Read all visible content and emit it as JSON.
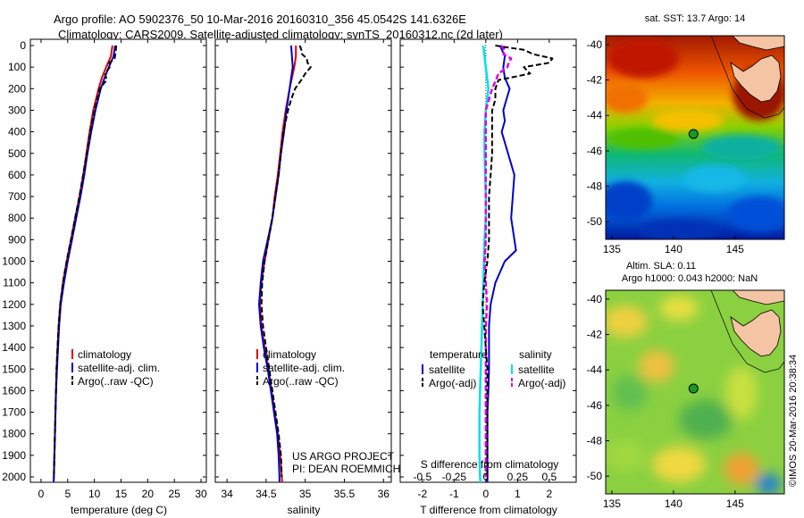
{
  "header": {
    "line1": "Argo profile: AO 5902376_50 10-Mar-2016 20160310_356 45.0542S 141.6326E",
    "line2": "Climatology: CARS2009. Satellite-adjusted climatology: synTS_20160312.nc (2d later)"
  },
  "colors": {
    "climatology": "#e00000",
    "satellite": "#0000d0",
    "argo": "#000000",
    "sat_salinity": "#00e0e8",
    "argo_salinity": "#e000e0"
  },
  "chart_data": [
    {
      "type": "line",
      "id": "temperature",
      "xlabel": "temperature (deg C)",
      "ylim": [
        2050,
        0
      ],
      "xlim": [
        -2,
        31
      ],
      "xticks": [
        "0",
        "5",
        "10",
        "15",
        "20",
        "25",
        "30"
      ],
      "yticks": [
        "0",
        "100",
        "200",
        "300",
        "400",
        "500",
        "600",
        "700",
        "800",
        "900",
        "1000",
        "1100",
        "1200",
        "1300",
        "1400",
        "1500",
        "1600",
        "1700",
        "1800",
        "1900",
        "2000"
      ],
      "legend": [
        "climatology",
        "satellite-adj. clim.",
        "Argo(..raw -QC)"
      ],
      "series": [
        {
          "name": "climatology",
          "depth": [
            0,
            50,
            100,
            150,
            200,
            300,
            400,
            500,
            600,
            700,
            800,
            900,
            1000,
            1100,
            1200,
            1300,
            1400,
            1500,
            1600,
            1700,
            1800,
            1900,
            2000,
            2050
          ],
          "values": [
            13.4,
            13.1,
            12.2,
            11.4,
            10.8,
            9.8,
            9.1,
            8.5,
            7.9,
            7.2,
            6.4,
            5.6,
            4.8,
            4.1,
            3.6,
            3.3,
            3.1,
            2.9,
            2.8,
            2.7,
            2.6,
            2.5,
            2.4,
            2.3
          ]
        },
        {
          "name": "satellite-adj. clim.",
          "depth": [
            0,
            50,
            100,
            150,
            200,
            300,
            400,
            500,
            600,
            700,
            800,
            900,
            1000,
            1100,
            1200,
            1300,
            1400,
            1500,
            1600,
            1700,
            1800,
            1900,
            2000,
            2050
          ],
          "values": [
            13.9,
            13.6,
            12.7,
            11.9,
            11.2,
            10.2,
            9.4,
            8.7,
            8.1,
            7.4,
            6.6,
            5.8,
            5.0,
            4.3,
            3.7,
            3.4,
            3.2,
            3.0,
            2.8,
            2.7,
            2.6,
            2.5,
            2.4,
            2.3
          ]
        },
        {
          "name": "Argo(..raw -QC)",
          "depth": [
            0,
            30,
            60,
            80,
            100,
            130,
            160,
            200,
            250,
            300,
            400,
            500,
            600,
            700,
            800,
            900,
            1000,
            1100,
            1200,
            1300,
            1400,
            1500,
            1600,
            1700,
            1800,
            1900,
            2000
          ],
          "values": [
            14.1,
            14.0,
            13.8,
            12.8,
            12.9,
            12.0,
            12.3,
            11.0,
            10.5,
            10.0,
            9.2,
            8.6,
            7.9,
            7.2,
            6.4,
            5.6,
            4.8,
            4.1,
            3.6,
            3.3,
            3.1,
            2.9,
            2.8,
            2.7,
            2.6,
            2.5,
            2.4
          ]
        }
      ]
    },
    {
      "type": "line",
      "id": "salinity",
      "xlabel": "salinity",
      "ylim": [
        2050,
        0
      ],
      "xlim": [
        33.85,
        36.1
      ],
      "xticks": [
        "34",
        "34.5",
        "35",
        "35.5",
        "36"
      ],
      "legend": [
        "climatology",
        "satellite-adj. clim.",
        "Argo(..raw -QC)"
      ],
      "annotation": [
        "US ARGO PROJECT",
        "PI: DEAN ROEMMICH"
      ],
      "series": [
        {
          "name": "climatology",
          "depth": [
            0,
            50,
            100,
            150,
            200,
            300,
            400,
            500,
            600,
            700,
            800,
            900,
            1000,
            1100,
            1200,
            1300,
            1400,
            1500,
            1600,
            1700,
            1800,
            1900,
            2000,
            2050
          ],
          "values": [
            34.88,
            34.88,
            34.86,
            34.83,
            34.8,
            34.75,
            34.71,
            34.68,
            34.65,
            34.61,
            34.58,
            34.53,
            34.48,
            34.44,
            34.42,
            34.44,
            34.48,
            34.53,
            34.57,
            34.61,
            34.65,
            34.68,
            34.7,
            34.71
          ]
        },
        {
          "name": "satellite-adj. clim.",
          "depth": [
            0,
            50,
            100,
            150,
            200,
            300,
            400,
            500,
            600,
            700,
            800,
            900,
            1000,
            1100,
            1200,
            1300,
            1400,
            1500,
            1600,
            1700,
            1800,
            1900,
            2000,
            2050
          ],
          "values": [
            34.82,
            34.83,
            34.84,
            34.82,
            34.8,
            34.76,
            34.73,
            34.69,
            34.66,
            34.62,
            34.58,
            34.52,
            34.46,
            34.43,
            34.41,
            34.43,
            34.47,
            34.52,
            34.56,
            34.6,
            34.64,
            34.66,
            34.67,
            34.67
          ]
        },
        {
          "name": "Argo(..raw -QC)",
          "depth": [
            0,
            20,
            40,
            60,
            80,
            100,
            130,
            160,
            200,
            250,
            300,
            400,
            500,
            600,
            700,
            800,
            900,
            1000,
            1100,
            1200,
            1300,
            1400,
            1500,
            1600,
            1700,
            1800,
            1900,
            2000
          ],
          "values": [
            34.93,
            34.95,
            34.96,
            35.02,
            35.03,
            35.07,
            35.0,
            34.95,
            34.87,
            34.82,
            34.78,
            34.72,
            34.69,
            34.66,
            34.62,
            34.58,
            34.53,
            34.48,
            34.45,
            34.44,
            34.46,
            34.5,
            34.54,
            34.58,
            34.62,
            34.66,
            34.69,
            34.7
          ]
        }
      ]
    },
    {
      "type": "line",
      "id": "difference",
      "xlabel": "T difference from climatology",
      "x2label": "S difference from climatology",
      "ylim": [
        2050,
        0
      ],
      "xlim": [
        -2.7,
        2.85
      ],
      "xticks": [
        "-2",
        "-1",
        "0",
        "1",
        "2"
      ],
      "s_xticks": [
        "-0.5",
        "-0.25",
        "0",
        "0.25",
        "0.5"
      ],
      "s_to_t_scale": 4,
      "legend_groups": [
        {
          "title": "temperature",
          "items": [
            "satellite",
            "Argo(-adj)"
          ]
        },
        {
          "title": "salinity",
          "items": [
            "satellite",
            "Argo(-adj)"
          ]
        }
      ],
      "series": [
        {
          "name": "satellite",
          "group": "temperature",
          "depth": [
            0,
            50,
            100,
            150,
            200,
            250,
            300,
            350,
            400,
            500,
            600,
            700,
            800,
            900,
            950,
            1000,
            1100,
            1200,
            1300,
            1400,
            1500,
            1600,
            1700,
            1800,
            1900,
            2000,
            2050
          ],
          "values": [
            0.45,
            0.6,
            0.55,
            0.6,
            0.75,
            0.65,
            0.55,
            0.6,
            0.5,
            0.7,
            0.9,
            0.85,
            0.8,
            0.9,
            0.95,
            0.6,
            0.3,
            0.15,
            0.1,
            0.1,
            0.1,
            0.08,
            0.05,
            0.05,
            0.05,
            0.05,
            0.05
          ]
        },
        {
          "name": "Argo(-adj)",
          "group": "temperature",
          "depth": [
            0,
            20,
            40,
            60,
            80,
            100,
            130,
            160,
            200,
            250,
            300,
            400,
            500,
            600,
            700,
            800,
            900,
            1000,
            1100,
            1200,
            1300,
            1400,
            1500,
            1600,
            1700,
            1800,
            1900,
            2000
          ],
          "values": [
            0.3,
            1.2,
            1.5,
            2.1,
            2.0,
            1.2,
            1.4,
            0.4,
            0.3,
            0.3,
            0.2,
            0.2,
            0.2,
            0.15,
            0.1,
            0.1,
            0.1,
            0.05,
            -0.05,
            -0.1,
            -0.05,
            0.0,
            0.05,
            0.05,
            0.05,
            0.05,
            0.05,
            0.05
          ]
        },
        {
          "name": "satellite",
          "group": "salinity",
          "depth": [
            0,
            100,
            200,
            300,
            400,
            500,
            600,
            700,
            800,
            900,
            1000,
            1100,
            1200,
            1300,
            1400,
            1500,
            1600,
            1700,
            1800,
            1900,
            2000,
            2050
          ],
          "values": [
            -0.02,
            0.0,
            0.02,
            0.0,
            -0.01,
            -0.01,
            -0.005,
            0.0,
            0.0,
            -0.01,
            -0.015,
            -0.02,
            -0.025,
            -0.03,
            -0.035,
            -0.04,
            -0.045,
            -0.05,
            -0.05,
            -0.05,
            -0.045,
            -0.04
          ]
        },
        {
          "name": "Argo(-adj)",
          "group": "salinity",
          "depth": [
            0,
            20,
            40,
            60,
            80,
            100,
            130,
            160,
            200,
            300,
            400,
            500,
            600,
            700,
            800,
            900,
            1000,
            1100,
            1200,
            1300,
            1400,
            1500,
            1600,
            1700,
            1800,
            1900,
            2000
          ],
          "values": [
            0.12,
            0.15,
            0.14,
            0.2,
            0.18,
            0.17,
            0.1,
            0.08,
            0.05,
            0.0,
            0.0,
            0.0,
            0.0,
            0.0,
            0.0,
            0.0,
            -0.01,
            0.0,
            0.01,
            0.0,
            0.0,
            0.0,
            0.0,
            0.0,
            0.0,
            0.0,
            0.0
          ]
        }
      ]
    },
    {
      "type": "heatmap",
      "id": "sst_map",
      "title": "sat. SST: 13.7  Argo: 14",
      "xticks": [
        "135",
        "140",
        "145"
      ],
      "yticks": [
        "-40",
        "-42",
        "-44",
        "-46",
        "-48",
        "-50"
      ],
      "xlim": [
        134.5,
        149
      ],
      "ylim": [
        -51,
        -39.5
      ],
      "argo_position": [
        141.63,
        -45.05
      ]
    },
    {
      "type": "heatmap",
      "id": "sla_map",
      "title_line1": "Altim. SLA: 0.11",
      "title_line2": "Argo h1000: 0.043  h2000: NaN",
      "xticks": [
        "135",
        "140",
        "145"
      ],
      "yticks": [
        "-40",
        "-42",
        "-44",
        "-46",
        "-48",
        "-50"
      ],
      "xlim": [
        134.5,
        149
      ],
      "ylim": [
        -51,
        -39.5
      ],
      "argo_position": [
        141.63,
        -45.05
      ]
    }
  ],
  "credit": "©IMOS 20-Mar-2016 20:38:34"
}
